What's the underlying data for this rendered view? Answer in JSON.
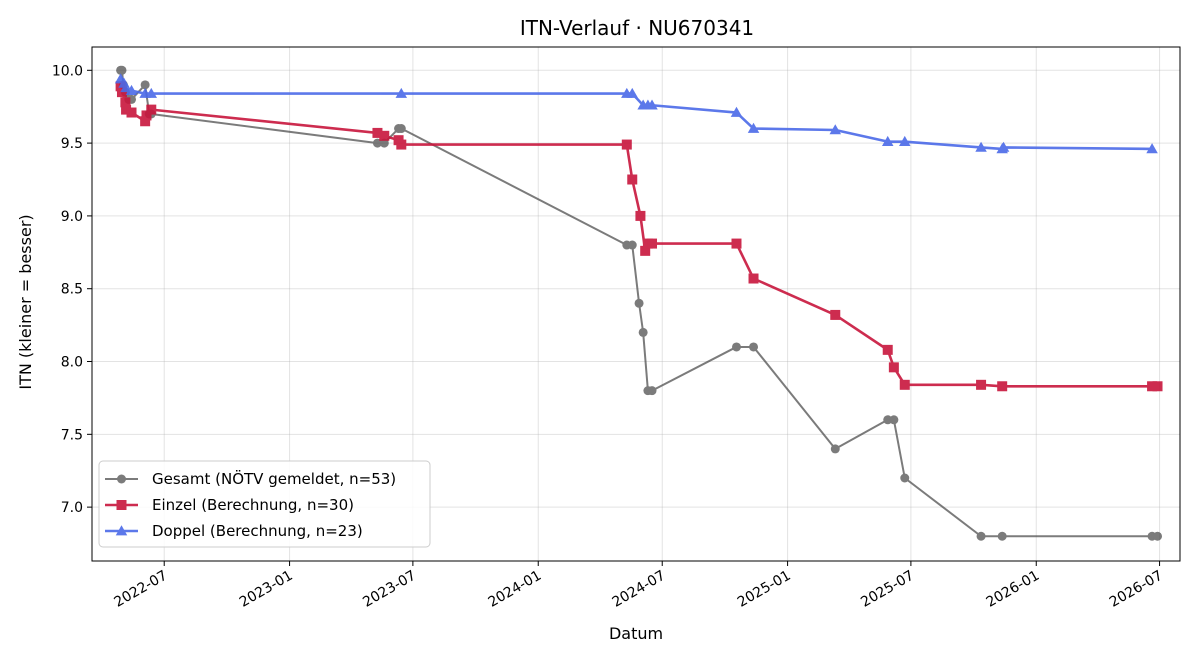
{
  "chart_data": {
    "type": "line",
    "title": "ITN-Verlauf · NU670341",
    "xlabel": "Datum",
    "ylabel": "ITN  (kleiner = besser)",
    "x_type": "date",
    "xlim": [
      "2022-03-17",
      "2026-07-31"
    ],
    "ylim": [
      6.63,
      10.16
    ],
    "x_ticks": [
      "2022-07-01",
      "2023-01-01",
      "2023-07-01",
      "2024-01-01",
      "2024-07-01",
      "2025-01-01",
      "2025-07-01",
      "2026-01-01",
      "2026-07-01"
    ],
    "x_tick_labels": [
      "2022-07",
      "2023-01",
      "2023-07",
      "2024-01",
      "2024-07",
      "2025-01",
      "2025-07",
      "2026-01",
      "2026-07"
    ],
    "y_ticks": [
      7.0,
      7.5,
      8.0,
      8.5,
      9.0,
      9.5,
      10.0
    ],
    "y_tick_labels": [
      "7.0",
      "7.5",
      "8.0",
      "8.5",
      "9.0",
      "9.5",
      "10.0"
    ],
    "grid": true,
    "legend_position": "lower-left",
    "series": [
      {
        "name": "Gesamt (NÖTV gemeldet, n=53)",
        "color": "#444444",
        "marker": "circle",
        "points": [
          {
            "x": "2022-04-28",
            "y": 10.0
          },
          {
            "x": "2022-04-30",
            "y": 10.0
          },
          {
            "x": "2022-05-02",
            "y": 9.9
          },
          {
            "x": "2022-05-05",
            "y": 9.85
          },
          {
            "x": "2022-05-10",
            "y": 9.8
          },
          {
            "x": "2022-05-14",
            "y": 9.8
          },
          {
            "x": "2022-06-03",
            "y": 9.9
          },
          {
            "x": "2022-06-09",
            "y": 9.7
          },
          {
            "x": "2022-06-12",
            "y": 9.7
          },
          {
            "x": "2023-05-10",
            "y": 9.5
          },
          {
            "x": "2023-05-20",
            "y": 9.5
          },
          {
            "x": "2023-06-10",
            "y": 9.6
          },
          {
            "x": "2023-06-14",
            "y": 9.6
          },
          {
            "x": "2024-05-10",
            "y": 8.8
          },
          {
            "x": "2024-05-18",
            "y": 8.8
          },
          {
            "x": "2024-05-28",
            "y": 8.4
          },
          {
            "x": "2024-06-03",
            "y": 8.2
          },
          {
            "x": "2024-06-10",
            "y": 7.8
          },
          {
            "x": "2024-06-16",
            "y": 7.8
          },
          {
            "x": "2024-10-18",
            "y": 8.1
          },
          {
            "x": "2024-11-12",
            "y": 8.1
          },
          {
            "x": "2025-03-12",
            "y": 7.4
          },
          {
            "x": "2025-05-28",
            "y": 7.6
          },
          {
            "x": "2025-06-06",
            "y": 7.6
          },
          {
            "x": "2025-06-22",
            "y": 7.2
          },
          {
            "x": "2025-10-12",
            "y": 6.8
          },
          {
            "x": "2025-11-12",
            "y": 6.8
          },
          {
            "x": "2026-06-20",
            "y": 6.8
          },
          {
            "x": "2026-06-28",
            "y": 6.8
          }
        ]
      },
      {
        "name": "Einzel (Berechnung, n=30)",
        "color": "#c8163c",
        "marker": "square",
        "points": [
          {
            "x": "2022-04-28",
            "y": 9.89
          },
          {
            "x": "2022-04-30",
            "y": 9.85
          },
          {
            "x": "2022-05-05",
            "y": 9.78
          },
          {
            "x": "2022-05-06",
            "y": 9.73
          },
          {
            "x": "2022-05-14",
            "y": 9.71
          },
          {
            "x": "2022-06-03",
            "y": 9.65
          },
          {
            "x": "2022-06-05",
            "y": 9.69
          },
          {
            "x": "2022-06-12",
            "y": 9.73
          },
          {
            "x": "2023-05-10",
            "y": 9.57
          },
          {
            "x": "2023-05-20",
            "y": 9.55
          },
          {
            "x": "2023-06-10",
            "y": 9.52
          },
          {
            "x": "2023-06-14",
            "y": 9.49
          },
          {
            "x": "2024-05-10",
            "y": 9.49
          },
          {
            "x": "2024-05-18",
            "y": 9.25
          },
          {
            "x": "2024-05-30",
            "y": 9.0
          },
          {
            "x": "2024-06-06",
            "y": 8.76
          },
          {
            "x": "2024-06-10",
            "y": 8.81
          },
          {
            "x": "2024-06-16",
            "y": 8.81
          },
          {
            "x": "2024-10-18",
            "y": 8.81
          },
          {
            "x": "2024-11-12",
            "y": 8.57
          },
          {
            "x": "2025-03-12",
            "y": 8.32
          },
          {
            "x": "2025-05-28",
            "y": 8.08
          },
          {
            "x": "2025-06-06",
            "y": 7.96
          },
          {
            "x": "2025-06-22",
            "y": 7.84
          },
          {
            "x": "2025-10-12",
            "y": 7.84
          },
          {
            "x": "2025-11-12",
            "y": 7.83
          },
          {
            "x": "2026-06-20",
            "y": 7.83
          },
          {
            "x": "2026-06-28",
            "y": 7.83
          }
        ]
      },
      {
        "name": "Doppel (Berechnung, n=23)",
        "color": "#4b6ae8",
        "marker": "triangle",
        "points": [
          {
            "x": "2022-04-28",
            "y": 9.94
          },
          {
            "x": "2022-05-03",
            "y": 9.91
          },
          {
            "x": "2022-05-06",
            "y": 9.88
          },
          {
            "x": "2022-05-14",
            "y": 9.86
          },
          {
            "x": "2022-06-03",
            "y": 9.84
          },
          {
            "x": "2022-06-12",
            "y": 9.84
          },
          {
            "x": "2023-06-14",
            "y": 9.84
          },
          {
            "x": "2024-05-10",
            "y": 9.84
          },
          {
            "x": "2024-05-18",
            "y": 9.84
          },
          {
            "x": "2024-06-03",
            "y": 9.76
          },
          {
            "x": "2024-06-10",
            "y": 9.76
          },
          {
            "x": "2024-06-16",
            "y": 9.76
          },
          {
            "x": "2024-10-18",
            "y": 9.71
          },
          {
            "x": "2024-11-12",
            "y": 9.6
          },
          {
            "x": "2025-03-12",
            "y": 9.59
          },
          {
            "x": "2025-05-28",
            "y": 9.51
          },
          {
            "x": "2025-06-22",
            "y": 9.51
          },
          {
            "x": "2025-10-12",
            "y": 9.47
          },
          {
            "x": "2025-11-12",
            "y": 9.46
          },
          {
            "x": "2025-11-14",
            "y": 9.47
          },
          {
            "x": "2026-06-20",
            "y": 9.46
          }
        ]
      }
    ]
  }
}
